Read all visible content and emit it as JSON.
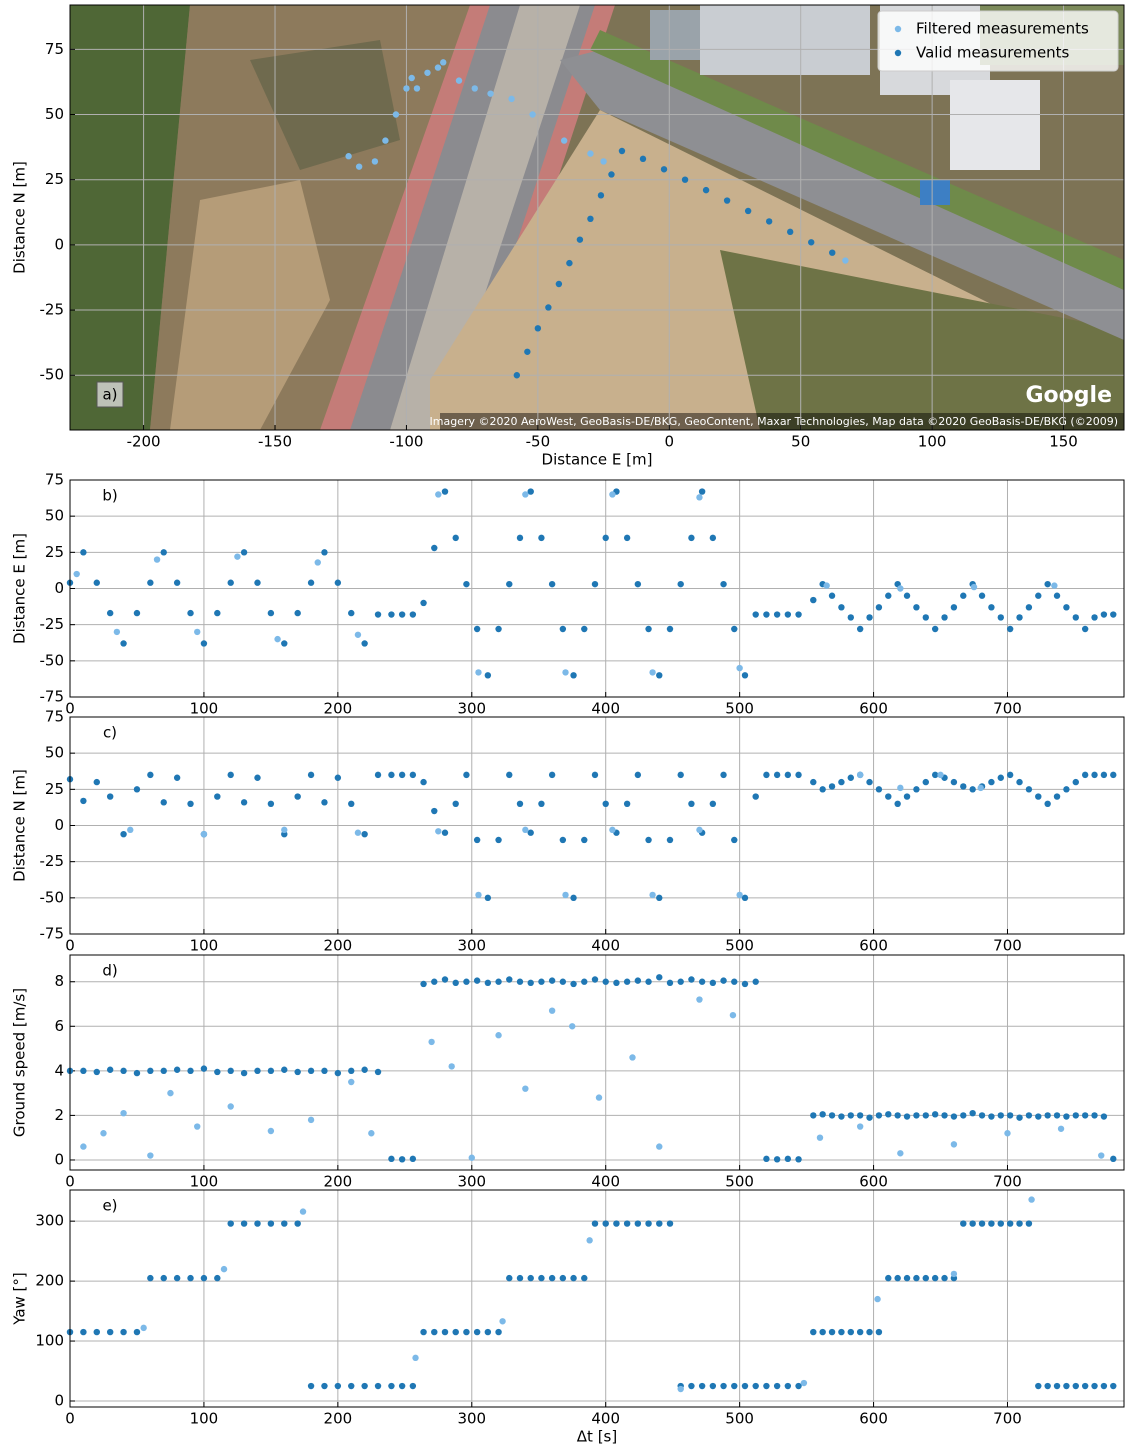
{
  "chart_data": [
    {
      "type": "scatter",
      "xlabel": "Distance E [m]",
      "ylabel": "Distance N [m]",
      "panel_label": "a)",
      "watermark": "Google",
      "credit": "Imagery ©2020 AeroWest, GeoBasis-DE/BKG, GeoContent, Maxar Technologies, Map data ©2020 GeoBasis-DE/BKG (©2009)",
      "xlim": [
        -228,
        173
      ],
      "ylim": [
        -71,
        92
      ],
      "xticks": [
        -200,
        -150,
        -100,
        -50,
        0,
        50,
        100,
        150
      ],
      "yticks": [
        -50,
        -25,
        0,
        25,
        50,
        75
      ],
      "grid": true,
      "legend": "upper right",
      "series": [
        {
          "name": "Filtered measurements",
          "color": "#7cb9e8",
          "x": [
            -122,
            -118,
            -112,
            -108,
            -104,
            -100,
            -98,
            -96,
            -92,
            -88,
            -86,
            -80,
            -74,
            -68,
            -60,
            -52,
            -40,
            -30,
            -25,
            67
          ],
          "values": [
            34,
            30,
            32,
            40,
            50,
            60,
            64,
            60,
            66,
            68,
            70,
            63,
            60,
            58,
            56,
            50,
            40,
            35,
            32,
            -6
          ]
        },
        {
          "name": "Valid measurements",
          "color": "#1f77b4",
          "x": [
            -58,
            -54,
            -50,
            -46,
            -42,
            -38,
            -34,
            -30,
            -26,
            -22,
            -18,
            -10,
            -2,
            6,
            14,
            22,
            30,
            38,
            46,
            54,
            62
          ],
          "values": [
            -50,
            -41,
            -32,
            -24,
            -15,
            -7,
            2,
            10,
            19,
            27,
            36,
            33,
            29,
            25,
            21,
            17,
            13,
            9,
            5,
            1,
            -3
          ]
        }
      ]
    },
    {
      "type": "scatter",
      "ylabel": "Distance E [m]",
      "panel_label": "b)",
      "xlim": [
        0,
        787
      ],
      "ylim": [
        -75,
        75
      ],
      "xticks": [
        0,
        100,
        200,
        300,
        400,
        500,
        600,
        700
      ],
      "yticks": [
        -75,
        -50,
        -25,
        0,
        25,
        50,
        75
      ],
      "grid": true,
      "x": [
        0,
        10,
        20,
        30,
        40,
        50,
        60,
        70,
        80,
        90,
        100,
        110,
        120,
        130,
        140,
        150,
        160,
        170,
        180,
        190,
        200,
        210,
        220,
        230,
        240,
        248,
        256,
        264,
        272,
        280,
        288,
        296,
        304,
        312,
        320,
        328,
        336,
        344,
        352,
        360,
        368,
        376,
        384,
        392,
        400,
        408,
        416,
        424,
        432,
        440,
        448,
        456,
        464,
        472,
        480,
        488,
        496,
        504,
        512,
        520,
        528,
        536,
        544,
        555,
        562,
        569,
        576,
        583,
        590,
        597,
        604,
        611,
        618,
        625,
        632,
        639,
        646,
        653,
        660,
        667,
        674,
        681,
        688,
        695,
        702,
        709,
        716,
        723,
        730,
        737,
        744,
        751,
        758,
        765,
        772,
        779
      ],
      "series": [
        {
          "color": "#1f77b4",
          "values": [
            4,
            25,
            4,
            -17,
            -38,
            -17,
            4,
            25,
            4,
            -17,
            -38,
            -17,
            4,
            25,
            4,
            -17,
            -38,
            -17,
            4,
            25,
            4,
            -17,
            -38,
            -18,
            -18,
            -18,
            -18,
            -10,
            28,
            67,
            35,
            3,
            -28,
            -60,
            -28,
            3,
            35,
            67,
            35,
            3,
            -28,
            -60,
            -28,
            3,
            35,
            67,
            35,
            3,
            -28,
            -60,
            -28,
            3,
            35,
            67,
            35,
            3,
            -28,
            -60,
            -18,
            -18,
            -18,
            -18,
            -18,
            -8,
            3,
            -5,
            -13,
            -20,
            -28,
            -20,
            -13,
            -5,
            3,
            -5,
            -13,
            -20,
            -28,
            -20,
            -13,
            -5,
            3,
            -5,
            -13,
            -20,
            -28,
            -20,
            -13,
            -5,
            3,
            -5,
            -13,
            -20,
            -28,
            -20,
            -18,
            -18
          ]
        },
        {
          "color": "#7cb9e8",
          "x": [
            5,
            35,
            65,
            95,
            125,
            155,
            185,
            215,
            275,
            305,
            340,
            370,
            405,
            435,
            470,
            500,
            565,
            620,
            675,
            735
          ],
          "values": [
            10,
            -30,
            20,
            -30,
            22,
            -35,
            18,
            -32,
            65,
            -58,
            65,
            -58,
            65,
            -58,
            63,
            -55,
            2,
            0,
            1,
            2
          ]
        }
      ]
    },
    {
      "type": "scatter",
      "ylabel": "Distance N [m]",
      "panel_label": "c)",
      "xlim": [
        0,
        787
      ],
      "ylim": [
        -75,
        75
      ],
      "xticks": [
        0,
        100,
        200,
        300,
        400,
        500,
        600,
        700
      ],
      "yticks": [
        -75,
        -50,
        -25,
        0,
        25,
        50,
        75
      ],
      "grid": true,
      "x": [
        0,
        10,
        20,
        30,
        40,
        50,
        60,
        70,
        80,
        90,
        100,
        110,
        120,
        130,
        140,
        150,
        160,
        170,
        180,
        190,
        200,
        210,
        220,
        230,
        240,
        248,
        256,
        264,
        272,
        280,
        288,
        296,
        304,
        312,
        320,
        328,
        336,
        344,
        352,
        360,
        368,
        376,
        384,
        392,
        400,
        408,
        416,
        424,
        432,
        440,
        448,
        456,
        464,
        472,
        480,
        488,
        496,
        504,
        512,
        520,
        528,
        536,
        544,
        555,
        562,
        569,
        576,
        583,
        590,
        597,
        604,
        611,
        618,
        625,
        632,
        639,
        646,
        653,
        660,
        667,
        674,
        681,
        688,
        695,
        702,
        709,
        716,
        723,
        730,
        737,
        744,
        751,
        758,
        765,
        772,
        779
      ],
      "series": [
        {
          "color": "#1f77b4",
          "values": [
            32,
            17,
            30,
            20,
            -6,
            25,
            35,
            16,
            33,
            15,
            -6,
            20,
            35,
            16,
            33,
            15,
            -6,
            20,
            35,
            16,
            33,
            15,
            -6,
            35,
            35,
            35,
            35,
            30,
            10,
            -5,
            15,
            35,
            -10,
            -50,
            -10,
            35,
            15,
            -5,
            15,
            35,
            -10,
            -50,
            -10,
            35,
            15,
            -5,
            15,
            35,
            -10,
            -50,
            -10,
            35,
            15,
            -5,
            15,
            35,
            -10,
            -50,
            20,
            35,
            35,
            35,
            35,
            30,
            25,
            27,
            30,
            33,
            35,
            30,
            25,
            20,
            15,
            20,
            25,
            30,
            35,
            33,
            30,
            27,
            25,
            27,
            30,
            33,
            35,
            30,
            25,
            20,
            15,
            20,
            25,
            30,
            35,
            35,
            35,
            35
          ]
        },
        {
          "color": "#7cb9e8",
          "x": [
            45,
            100,
            160,
            215,
            275,
            305,
            340,
            370,
            405,
            435,
            470,
            500,
            590,
            620,
            650,
            680
          ],
          "values": [
            -3,
            -6,
            -3,
            -5,
            -4,
            -48,
            -3,
            -48,
            -3,
            -48,
            -3,
            -48,
            35,
            26,
            35,
            26
          ]
        }
      ]
    },
    {
      "type": "scatter",
      "ylabel": "Ground speed [m/s]",
      "panel_label": "d)",
      "xlim": [
        0,
        787
      ],
      "ylim": [
        -0.45,
        9.2
      ],
      "xticks": [
        0,
        100,
        200,
        300,
        400,
        500,
        600,
        700
      ],
      "yticks": [
        0,
        2,
        4,
        6,
        8
      ],
      "grid": true,
      "x": [
        0,
        10,
        20,
        30,
        40,
        50,
        60,
        70,
        80,
        90,
        100,
        110,
        120,
        130,
        140,
        150,
        160,
        170,
        180,
        190,
        200,
        210,
        220,
        230,
        240,
        248,
        256,
        264,
        272,
        280,
        288,
        296,
        304,
        312,
        320,
        328,
        336,
        344,
        352,
        360,
        368,
        376,
        384,
        392,
        400,
        408,
        416,
        424,
        432,
        440,
        448,
        456,
        464,
        472,
        480,
        488,
        496,
        504,
        512,
        520,
        528,
        536,
        544,
        555,
        562,
        569,
        576,
        583,
        590,
        597,
        604,
        611,
        618,
        625,
        632,
        639,
        646,
        653,
        660,
        667,
        674,
        681,
        688,
        695,
        702,
        709,
        716,
        723,
        730,
        737,
        744,
        751,
        758,
        765,
        772,
        779
      ],
      "series": [
        {
          "color": "#1f77b4",
          "values": [
            4.0,
            4.0,
            3.95,
            4.05,
            4.0,
            3.9,
            4.0,
            4.0,
            4.05,
            4.0,
            4.1,
            3.95,
            4.0,
            3.9,
            4.0,
            4.0,
            4.05,
            3.95,
            4.0,
            4.0,
            3.9,
            4.0,
            4.05,
            3.95,
            0.05,
            0.03,
            0.05,
            7.9,
            8.0,
            8.1,
            7.95,
            8.0,
            8.05,
            7.95,
            8.0,
            8.1,
            8.0,
            7.95,
            8.0,
            8.05,
            8.0,
            7.9,
            8.0,
            8.1,
            8.0,
            7.95,
            8.0,
            8.05,
            8.0,
            8.2,
            7.95,
            8.0,
            8.1,
            8.0,
            7.95,
            8.05,
            8.0,
            7.9,
            8.0,
            0.05,
            0.03,
            0.05,
            0.03,
            2.0,
            2.05,
            2.0,
            1.95,
            2.0,
            2.0,
            1.9,
            2.0,
            2.05,
            2.0,
            1.95,
            2.0,
            2.0,
            2.05,
            2.0,
            1.95,
            2.0,
            2.1,
            2.0,
            1.95,
            2.0,
            2.0,
            1.9,
            2.0,
            1.95,
            2.0,
            2.0,
            1.95,
            2.0,
            2.0,
            2.0,
            1.95,
            0.05
          ]
        },
        {
          "color": "#7cb9e8",
          "x": [
            10,
            25,
            40,
            60,
            75,
            95,
            120,
            150,
            180,
            210,
            225,
            270,
            285,
            300,
            320,
            340,
            360,
            375,
            395,
            420,
            440,
            470,
            495,
            560,
            590,
            620,
            660,
            700,
            740,
            770
          ],
          "values": [
            0.6,
            1.2,
            2.1,
            0.2,
            3,
            1.5,
            2.4,
            1.3,
            1.8,
            3.5,
            1.2,
            5.3,
            4.2,
            0.1,
            5.6,
            3.2,
            6.7,
            6,
            2.8,
            4.6,
            0.6,
            7.2,
            6.5,
            1,
            1.5,
            0.3,
            0.7,
            1.2,
            1.4,
            0.2
          ]
        }
      ]
    },
    {
      "type": "scatter",
      "xlabel": "Δt [s]",
      "ylabel": "Yaw [°]",
      "panel_label": "e)",
      "xlim": [
        0,
        787
      ],
      "ylim": [
        -10,
        352
      ],
      "xticks": [
        0,
        100,
        200,
        300,
        400,
        500,
        600,
        700
      ],
      "yticks": [
        0,
        100,
        200,
        300
      ],
      "grid": true,
      "x": [
        0,
        10,
        20,
        30,
        40,
        50,
        60,
        70,
        80,
        90,
        100,
        110,
        120,
        130,
        140,
        150,
        160,
        170,
        180,
        190,
        200,
        210,
        220,
        230,
        240,
        248,
        256,
        264,
        272,
        280,
        288,
        296,
        304,
        312,
        320,
        328,
        336,
        344,
        352,
        360,
        368,
        376,
        384,
        392,
        400,
        408,
        416,
        424,
        432,
        440,
        448,
        456,
        464,
        472,
        480,
        488,
        496,
        504,
        512,
        520,
        528,
        536,
        544,
        555,
        562,
        569,
        576,
        583,
        590,
        597,
        604,
        611,
        618,
        625,
        632,
        639,
        646,
        653,
        660,
        667,
        674,
        681,
        688,
        695,
        702,
        709,
        716,
        723,
        730,
        737,
        744,
        751,
        758,
        765,
        772,
        779
      ],
      "series": [
        {
          "color": "#1f77b4",
          "values": [
            115,
            115,
            115,
            115,
            115,
            115,
            205,
            205,
            205,
            205,
            205,
            205,
            296,
            296,
            296,
            296,
            296,
            296,
            25,
            25,
            25,
            25,
            25,
            25,
            25,
            25,
            25,
            115,
            115,
            115,
            115,
            115,
            115,
            115,
            115,
            205,
            205,
            205,
            205,
            205,
            205,
            205,
            205,
            296,
            296,
            296,
            296,
            296,
            296,
            296,
            296,
            25,
            25,
            25,
            25,
            25,
            25,
            25,
            25,
            25,
            25,
            25,
            25,
            115,
            115,
            115,
            115,
            115,
            115,
            115,
            115,
            205,
            205,
            205,
            205,
            205,
            205,
            205,
            205,
            296,
            296,
            296,
            296,
            296,
            296,
            296,
            296,
            25,
            25,
            25,
            25,
            25,
            25,
            25,
            25,
            25
          ]
        },
        {
          "color": "#7cb9e8",
          "x": [
            55,
            115,
            174,
            258,
            323,
            388,
            456,
            548,
            603,
            660,
            718
          ],
          "values": [
            122,
            220,
            316,
            72,
            133,
            268,
            20,
            30,
            170,
            212,
            336
          ]
        }
      ]
    }
  ]
}
